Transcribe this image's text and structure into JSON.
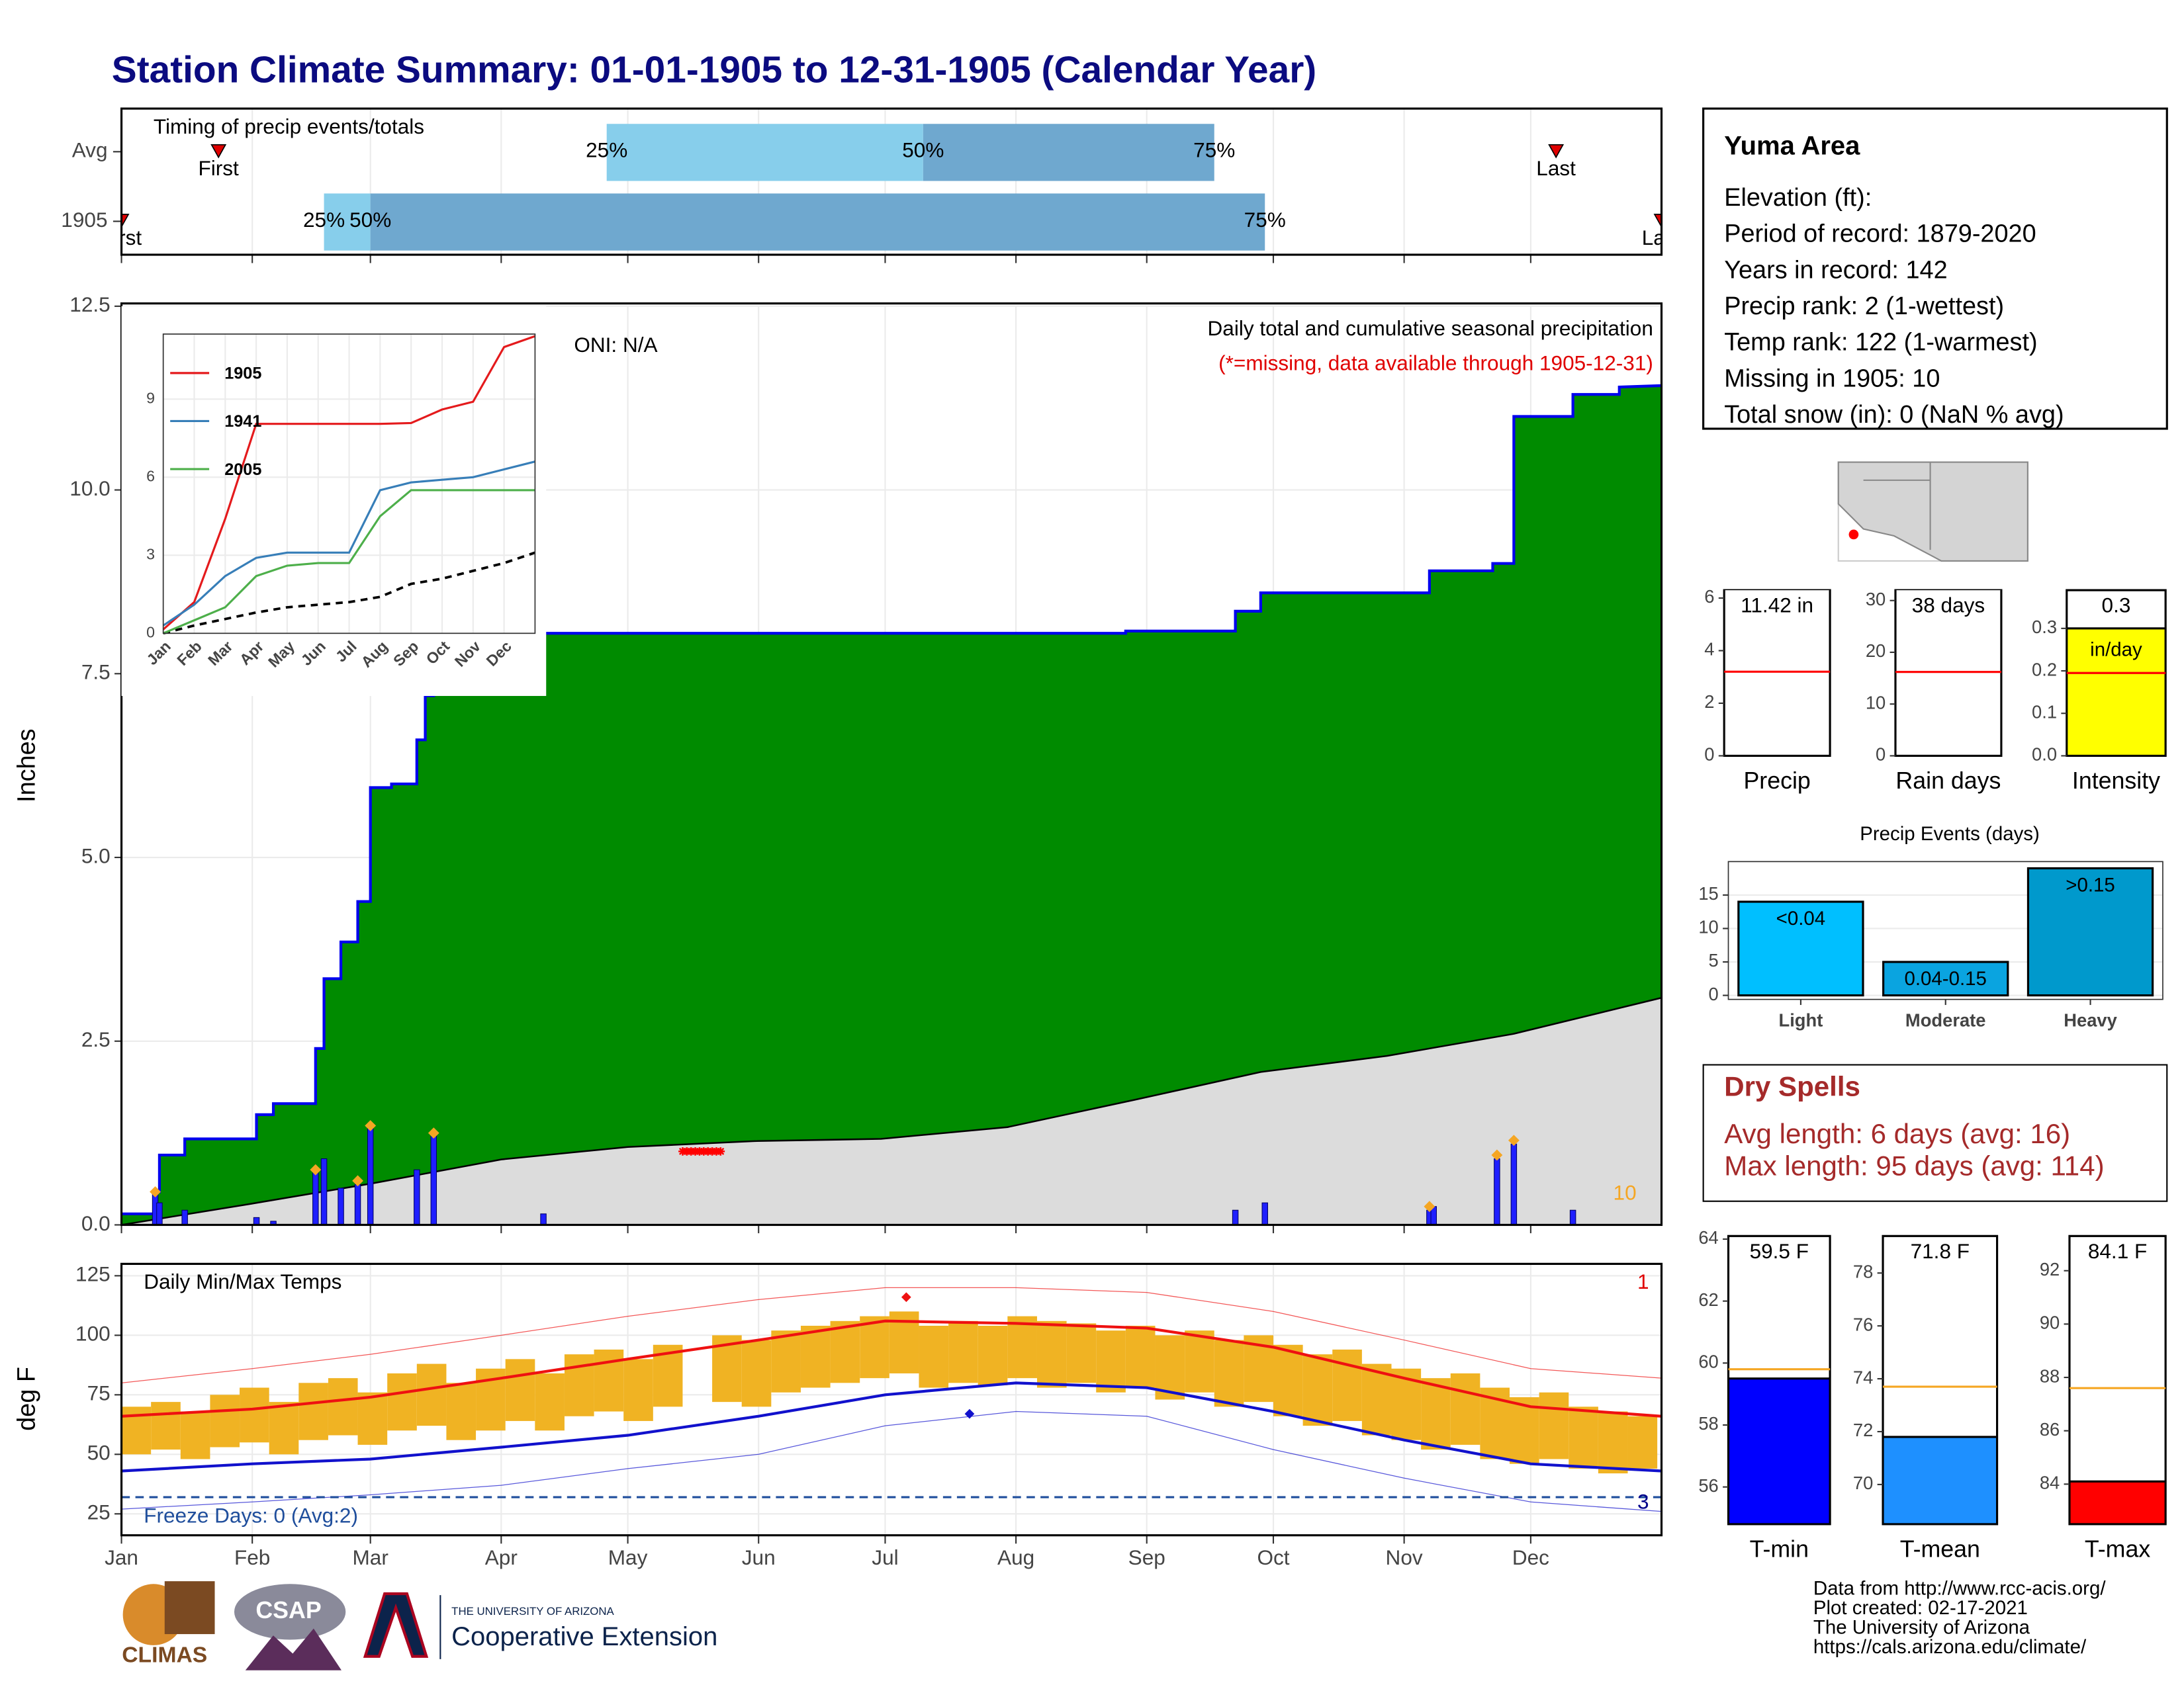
{
  "title": "Station Climate Summary: 01-01-1905 to 12-31-1905 (Calendar Year)",
  "info": {
    "title": "Yuma Area",
    "lines": [
      "Elevation (ft):",
      "Period of record: 1879-2020",
      "Years in record: 142",
      "Precip rank: 2 (1-wettest)",
      "Temp rank: 122 (1-warmest)",
      "Missing in 1905: 10",
      "Total snow (in): 0 (NaN % avg)"
    ]
  },
  "dry_spells": {
    "title": "Dry Spells",
    "lines": [
      "Avg length: 6 days (avg: 16)",
      "Max length: 95 days (avg: 114)"
    ]
  },
  "footer": {
    "logos": [
      "CLIMAS",
      "CSAP",
      "THE UNIVERSITY OF ARIZONA",
      "Cooperative Extension"
    ],
    "credits": [
      "Data from http://www.rcc-acis.org/",
      "Plot created: 02-17-2021",
      "The University of Arizona",
      "https://cals.arizona.edu/climate/"
    ]
  },
  "chart_data": [
    {
      "type": "timing",
      "title": "Timing of precip events/totals",
      "categories": [
        "Avg",
        "1905"
      ],
      "first": [
        23,
        0
      ],
      "p25": [
        115,
        48
      ],
      "p50": [
        190,
        59
      ],
      "p75": [
        259,
        271
      ],
      "last": [
        340,
        365
      ],
      "first_label": "First",
      "last_label": "Last",
      "pct_labels": [
        "25%",
        "50%",
        "75%"
      ],
      "colors": [
        "#87ceeb",
        "#6fa8cf"
      ],
      "marker_color": "#e00000",
      "xlim": [
        0,
        365
      ],
      "xticks": [
        0,
        31,
        59,
        90,
        120,
        151,
        181,
        212,
        243,
        273,
        304,
        334
      ],
      "grid": true
    },
    {
      "type": "cumulative",
      "title": "Daily total and cumulative seasonal precipitation",
      "subtitle": "(*=missing, data available through 1905-12-31)",
      "annotation": "ONI: N/A",
      "ylabel": "Inches",
      "missing_count": 10,
      "xlim": [
        0,
        365
      ],
      "xticks": [
        0,
        31,
        59,
        90,
        120,
        151,
        181,
        212,
        243,
        273,
        304,
        334
      ],
      "ylim": [
        0,
        12.5
      ],
      "yticks": [
        {
          "value": 0,
          "label": "0.0"
        },
        2.5,
        {
          "value": 5,
          "label": "5.0"
        },
        7.5,
        {
          "value": 10,
          "label": "10.0"
        },
        12.5
      ],
      "grid": true,
      "cum_x": [
        0,
        8,
        8,
        9,
        9,
        15,
        15,
        32,
        32,
        36,
        36,
        46,
        46,
        48,
        48,
        52,
        52,
        56,
        56,
        59,
        59,
        64,
        64,
        70,
        70,
        72,
        72,
        74,
        74,
        238,
        238,
        264,
        264,
        270,
        270,
        310,
        310,
        325,
        325,
        330,
        330,
        344,
        344,
        355,
        355,
        365
      ],
      "cum_values": [
        0.15,
        0.15,
        0.45,
        0.45,
        0.95,
        0.95,
        1.17,
        1.17,
        1.5,
        1.5,
        1.65,
        1.65,
        2.4,
        2.4,
        3.35,
        3.35,
        3.85,
        3.85,
        4.4,
        4.4,
        5.95,
        5.95,
        6.0,
        6.0,
        6.6,
        6.6,
        7.2,
        7.2,
        8.05,
        8.05,
        8.08,
        8.08,
        8.35,
        8.35,
        8.6,
        8.6,
        8.9,
        8.9,
        9.0,
        9.0,
        11.0,
        11.0,
        11.3,
        11.3,
        11.4,
        11.42
      ],
      "cum_color": "#008b00",
      "cum_line_color": "#0000ee",
      "avg_x": [
        0,
        30,
        60,
        90,
        120,
        150,
        180,
        210,
        240,
        270,
        300,
        330,
        365
      ],
      "avg_values": [
        0,
        0.28,
        0.57,
        0.89,
        1.06,
        1.14,
        1.17,
        1.33,
        1.7,
        2.08,
        2.3,
        2.6,
        3.09
      ],
      "avg_color": "#dcdcdc",
      "daily_x": [
        8,
        9,
        15,
        32,
        36,
        46,
        48,
        52,
        56,
        59,
        70,
        74,
        100,
        264,
        271,
        310,
        311,
        326,
        330,
        344
      ],
      "daily_values": [
        0.45,
        0.3,
        0.2,
        0.1,
        0.05,
        0.75,
        0.9,
        0.5,
        0.55,
        1.35,
        0.75,
        1.25,
        0.15,
        0.2,
        0.3,
        0.2,
        0.25,
        0.9,
        1.1,
        0.2
      ],
      "daily_color": "#1f1fff",
      "extreme_x": [
        8,
        46,
        56,
        59,
        74,
        310,
        326,
        330
      ],
      "extreme_values": [
        0.45,
        0.75,
        0.6,
        1.35,
        1.25,
        0.25,
        0.95,
        1.15
      ],
      "extreme_color": "#f5a623",
      "missing_x": [
        133,
        134,
        135,
        136,
        137,
        138,
        139,
        140,
        141,
        142
      ],
      "missing_y": 1.0,
      "missing_color": "#ff0000"
    },
    {
      "type": "inset",
      "xlim": [
        0,
        12
      ],
      "ylim": [
        0,
        11.5
      ],
      "xticks": [
        {
          "value": 0,
          "label": "Jan"
        },
        {
          "value": 1,
          "label": "Feb"
        },
        {
          "value": 2,
          "label": "Mar"
        },
        {
          "value": 3,
          "label": "Apr"
        },
        {
          "value": 4,
          "label": "May"
        },
        {
          "value": 5,
          "label": "Jun"
        },
        {
          "value": 6,
          "label": "Jul"
        },
        {
          "value": 7,
          "label": "Aug"
        },
        {
          "value": 8,
          "label": "Sep"
        },
        {
          "value": 9,
          "label": "Oct"
        },
        {
          "value": 10,
          "label": "Nov"
        },
        {
          "value": 11,
          "label": "Dec"
        }
      ],
      "yticks": [
        0,
        3,
        6,
        9
      ],
      "grid": true,
      "x": [
        0,
        1,
        2,
        3,
        4,
        5,
        6,
        7,
        8,
        9,
        10,
        11,
        12
      ],
      "series": [
        {
          "name": "1905",
          "color": "#e41a1c",
          "values": [
            0.15,
            1.2,
            4.4,
            8.05,
            8.05,
            8.05,
            8.05,
            8.05,
            8.08,
            8.6,
            8.9,
            11.0,
            11.42
          ]
        },
        {
          "name": "1941",
          "color": "#377eb8",
          "values": [
            0.3,
            1.1,
            2.2,
            2.9,
            3.1,
            3.1,
            3.1,
            5.5,
            5.8,
            5.9,
            6.0,
            6.3,
            6.6
          ]
        },
        {
          "name": "2005",
          "color": "#4daf4a",
          "values": [
            0,
            0.5,
            1.0,
            2.2,
            2.6,
            2.7,
            2.7,
            4.5,
            5.5,
            5.5,
            5.5,
            5.5,
            5.5
          ]
        }
      ],
      "avg_values": [
        0,
        0.3,
        0.55,
        0.8,
        1.0,
        1.1,
        1.2,
        1.4,
        1.9,
        2.1,
        2.4,
        2.7,
        3.1
      ]
    },
    {
      "type": "temps",
      "title": "Daily Min/Max Temps",
      "ylabel": "deg F",
      "xlim": [
        0,
        365
      ],
      "ylim": [
        16,
        130
      ],
      "xticks": [
        {
          "value": 0,
          "label": "Jan"
        },
        {
          "value": 31,
          "label": "Feb"
        },
        {
          "value": 59,
          "label": "Mar"
        },
        {
          "value": 90,
          "label": "Apr"
        },
        {
          "value": 120,
          "label": "May"
        },
        {
          "value": 151,
          "label": "Jun"
        },
        {
          "value": 181,
          "label": "Jul"
        },
        {
          "value": 212,
          "label": "Aug"
        },
        {
          "value": 243,
          "label": "Sep"
        },
        {
          "value": 273,
          "label": "Oct"
        },
        {
          "value": 304,
          "label": "Nov"
        },
        {
          "value": 334,
          "label": "Dec"
        }
      ],
      "yticks": [
        25,
        50,
        75,
        100,
        125
      ],
      "grid": true,
      "bar_x": [
        0,
        7,
        14,
        21,
        28,
        35,
        42,
        49,
        56,
        63,
        70,
        77,
        84,
        91,
        98,
        105,
        112,
        119,
        126,
        133,
        140,
        147,
        154,
        161,
        168,
        175,
        182,
        189,
        196,
        203,
        210,
        217,
        224,
        231,
        238,
        245,
        252,
        259,
        266,
        273,
        280,
        287,
        294,
        301,
        308,
        315,
        322,
        329,
        336,
        343,
        350,
        357
      ],
      "tmax": [
        70,
        72,
        68,
        75,
        78,
        72,
        80,
        82,
        76,
        84,
        88,
        80,
        86,
        90,
        84,
        92,
        94,
        90,
        96,
        null,
        100,
        98,
        102,
        104,
        106,
        108,
        110,
        104,
        106,
        104,
        108,
        106,
        105,
        102,
        104,
        100,
        102,
        98,
        100,
        96,
        92,
        94,
        88,
        86,
        82,
        84,
        78,
        74,
        76,
        70,
        68,
        66
      ],
      "tmin": [
        50,
        52,
        48,
        53,
        55,
        50,
        56,
        58,
        54,
        60,
        62,
        56,
        60,
        64,
        60,
        66,
        68,
        64,
        70,
        null,
        72,
        70,
        76,
        78,
        80,
        82,
        84,
        78,
        80,
        79,
        82,
        78,
        80,
        76,
        78,
        73,
        76,
        70,
        72,
        66,
        62,
        64,
        58,
        56,
        52,
        54,
        48,
        46,
        48,
        44,
        42,
        44
      ],
      "bar_color": "#f0b323",
      "line_x": [
        0,
        31,
        59,
        90,
        120,
        151,
        181,
        212,
        243,
        273,
        304,
        334,
        365
      ],
      "avg_max": [
        66,
        69,
        74,
        82,
        90,
        98,
        106,
        105,
        103,
        95,
        82,
        70,
        66
      ],
      "avg_min": [
        43,
        46,
        48,
        53,
        58,
        66,
        75,
        80,
        78,
        68,
        56,
        46,
        43
      ],
      "rec_max": [
        80,
        86,
        92,
        100,
        108,
        115,
        120,
        120,
        118,
        110,
        98,
        86,
        82
      ],
      "rec_min": [
        27,
        30,
        33,
        37,
        44,
        50,
        62,
        68,
        66,
        52,
        40,
        30,
        26
      ],
      "max_color": "#ee1111",
      "min_color": "#1111cc",
      "record_high": {
        "x": 186,
        "value": 116
      },
      "record_low": {
        "x": 201,
        "value": 67
      },
      "record_high_count": 1,
      "record_low_count": 3,
      "freeze_line": 32,
      "freeze_label": "Freeze Days: 0 (Avg:2)",
      "freeze_color": "#1f4e9c"
    },
    {
      "type": "gauge",
      "xlabel": "Precip",
      "value": 11.42,
      "value_label": "11.42 in",
      "average": 3.2,
      "ylim": [
        0,
        6.3
      ],
      "yticks": [
        0,
        2,
        4,
        6
      ],
      "color": "#ffffff",
      "avg_color": "#ff0000"
    },
    {
      "type": "gauge",
      "xlabel": "Rain days",
      "value": 38,
      "value_label": "38 days",
      "average": 16.2,
      "ylim": [
        0,
        32
      ],
      "yticks": [
        0,
        10,
        20,
        30
      ],
      "color": "#ffffff",
      "avg_color": "#ff0000"
    },
    {
      "type": "gauge",
      "xlabel": "Intensity",
      "value": 0.3,
      "value_label": "0.3",
      "unit_label": "in/day",
      "average": 0.195,
      "ylim": [
        0,
        0.39
      ],
      "yticks": [
        {
          "value": 0,
          "label": "0.0"
        },
        0.1,
        0.2,
        0.3
      ],
      "color": "#ffff00",
      "avg_color": "#ff0000"
    },
    {
      "type": "bar",
      "title": "Precip Events (days)",
      "categories": [
        "Light",
        "Moderate",
        "Heavy"
      ],
      "values": [
        14,
        5,
        19
      ],
      "bin_labels": [
        "<0.04",
        "0.04-0.15",
        ">0.15"
      ],
      "colors": [
        "#00bfff",
        "#0aa4e0",
        "#0099cc"
      ],
      "ylim": [
        -0.6,
        20
      ],
      "yticks": [
        0,
        5,
        10,
        15
      ]
    },
    {
      "type": "gauge",
      "xlabel": "T-min",
      "value": 59.5,
      "value_label": "59.5 F",
      "average": 59.8,
      "ylim": [
        54.8,
        64.1
      ],
      "yticks": [
        56,
        58,
        60,
        62,
        64
      ],
      "color": "#0000ff",
      "avg_color": "#f5a623"
    },
    {
      "type": "gauge",
      "xlabel": "T-mean",
      "value": 71.8,
      "value_label": "71.8 F",
      "average": 73.7,
      "ylim": [
        68.5,
        79.4
      ],
      "yticks": [
        70,
        72,
        74,
        76,
        78
      ],
      "color": "#1e90ff",
      "avg_color": "#f5a623"
    },
    {
      "type": "gauge",
      "xlabel": "T-max",
      "value": 84.1,
      "value_label": "84.1 F",
      "average": 87.6,
      "ylim": [
        82.5,
        93.3
      ],
      "yticks": [
        84,
        86,
        88,
        90,
        92
      ],
      "color": "#ff0000",
      "avg_color": "#f5a623"
    }
  ]
}
